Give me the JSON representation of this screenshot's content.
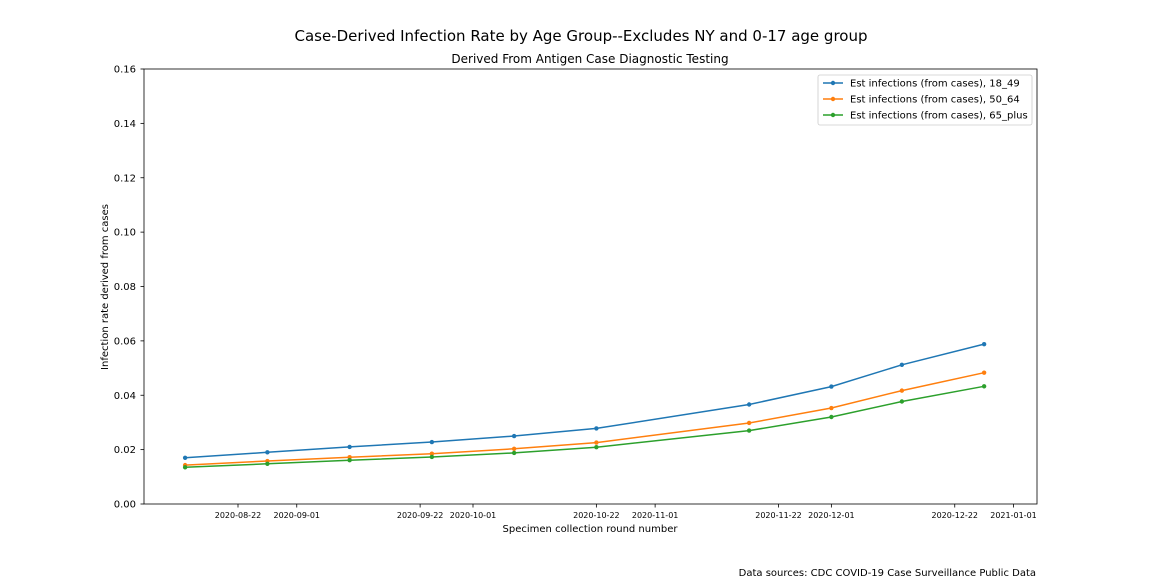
{
  "chart_data": {
    "type": "line",
    "title": "Case-Derived Infection Rate by Age Group--Excludes NY and 0-17 age group",
    "subtitle": "Derived From Antigen Case Diagnostic Testing",
    "xlabel": "Specimen collection round number",
    "ylabel": "Infection rate derived from cases",
    "xlim": [
      "2020-08-06",
      "2021-01-05"
    ],
    "ylim": [
      0,
      0.16
    ],
    "xticks": [
      "2020-08-22",
      "2020-09-01",
      "2020-09-22",
      "2020-10-01",
      "2020-10-22",
      "2020-11-01",
      "2020-11-22",
      "2020-12-01",
      "2020-12-22",
      "2021-01-01"
    ],
    "yticks": [
      "0.00",
      "0.02",
      "0.04",
      "0.06",
      "0.08",
      "0.10",
      "0.12",
      "0.14",
      "0.16"
    ],
    "x": [
      "2020-08-13",
      "2020-08-27",
      "2020-09-10",
      "2020-09-24",
      "2020-10-08",
      "2020-10-22",
      "2020-11-17",
      "2020-12-01",
      "2020-12-13",
      "2020-12-27"
    ],
    "series": [
      {
        "name": "Est infections (from cases), 18_49",
        "color": "#1f77b4",
        "values": [
          0.017,
          0.019,
          0.021,
          0.0228,
          0.025,
          0.0278,
          0.0366,
          0.0432,
          0.0512,
          0.0588
        ]
      },
      {
        "name": "Est infections (from cases), 50_64",
        "color": "#ff7f0e",
        "values": [
          0.0143,
          0.0158,
          0.0172,
          0.0185,
          0.0203,
          0.0226,
          0.0298,
          0.0353,
          0.0417,
          0.0483
        ]
      },
      {
        "name": "Est infections (from cases), 65_plus",
        "color": "#2ca02c",
        "values": [
          0.0135,
          0.0148,
          0.0161,
          0.0173,
          0.0188,
          0.0209,
          0.027,
          0.032,
          0.0377,
          0.0433
        ]
      }
    ],
    "legend_position": "top-right",
    "grid": false
  },
  "footer": {
    "sources": "Data sources: CDC COVID-19 Case Surveillance Public Data"
  }
}
